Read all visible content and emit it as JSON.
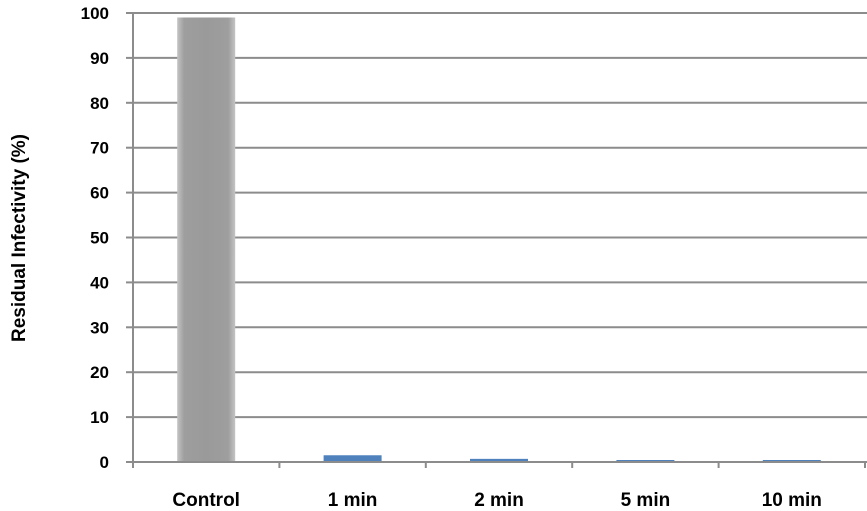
{
  "chart_data": {
    "type": "bar",
    "categories": [
      "Control",
      "1 min",
      "2 min",
      "5 min",
      "10 min"
    ],
    "values": [
      99,
      1.5,
      0.7,
      0.4,
      0.4
    ],
    "title": "",
    "xlabel": "",
    "ylabel": "Residual Infectivity (%)",
    "ylim": [
      0,
      100
    ],
    "yticks": [
      0,
      10,
      20,
      30,
      40,
      50,
      60,
      70,
      80,
      90,
      100
    ],
    "grid": true,
    "legend": "none",
    "colors": {
      "control": "#9a9a9a",
      "treated": "#4f81bd",
      "grid": "#8c8c8c",
      "axis": "#8c8c8c"
    }
  }
}
